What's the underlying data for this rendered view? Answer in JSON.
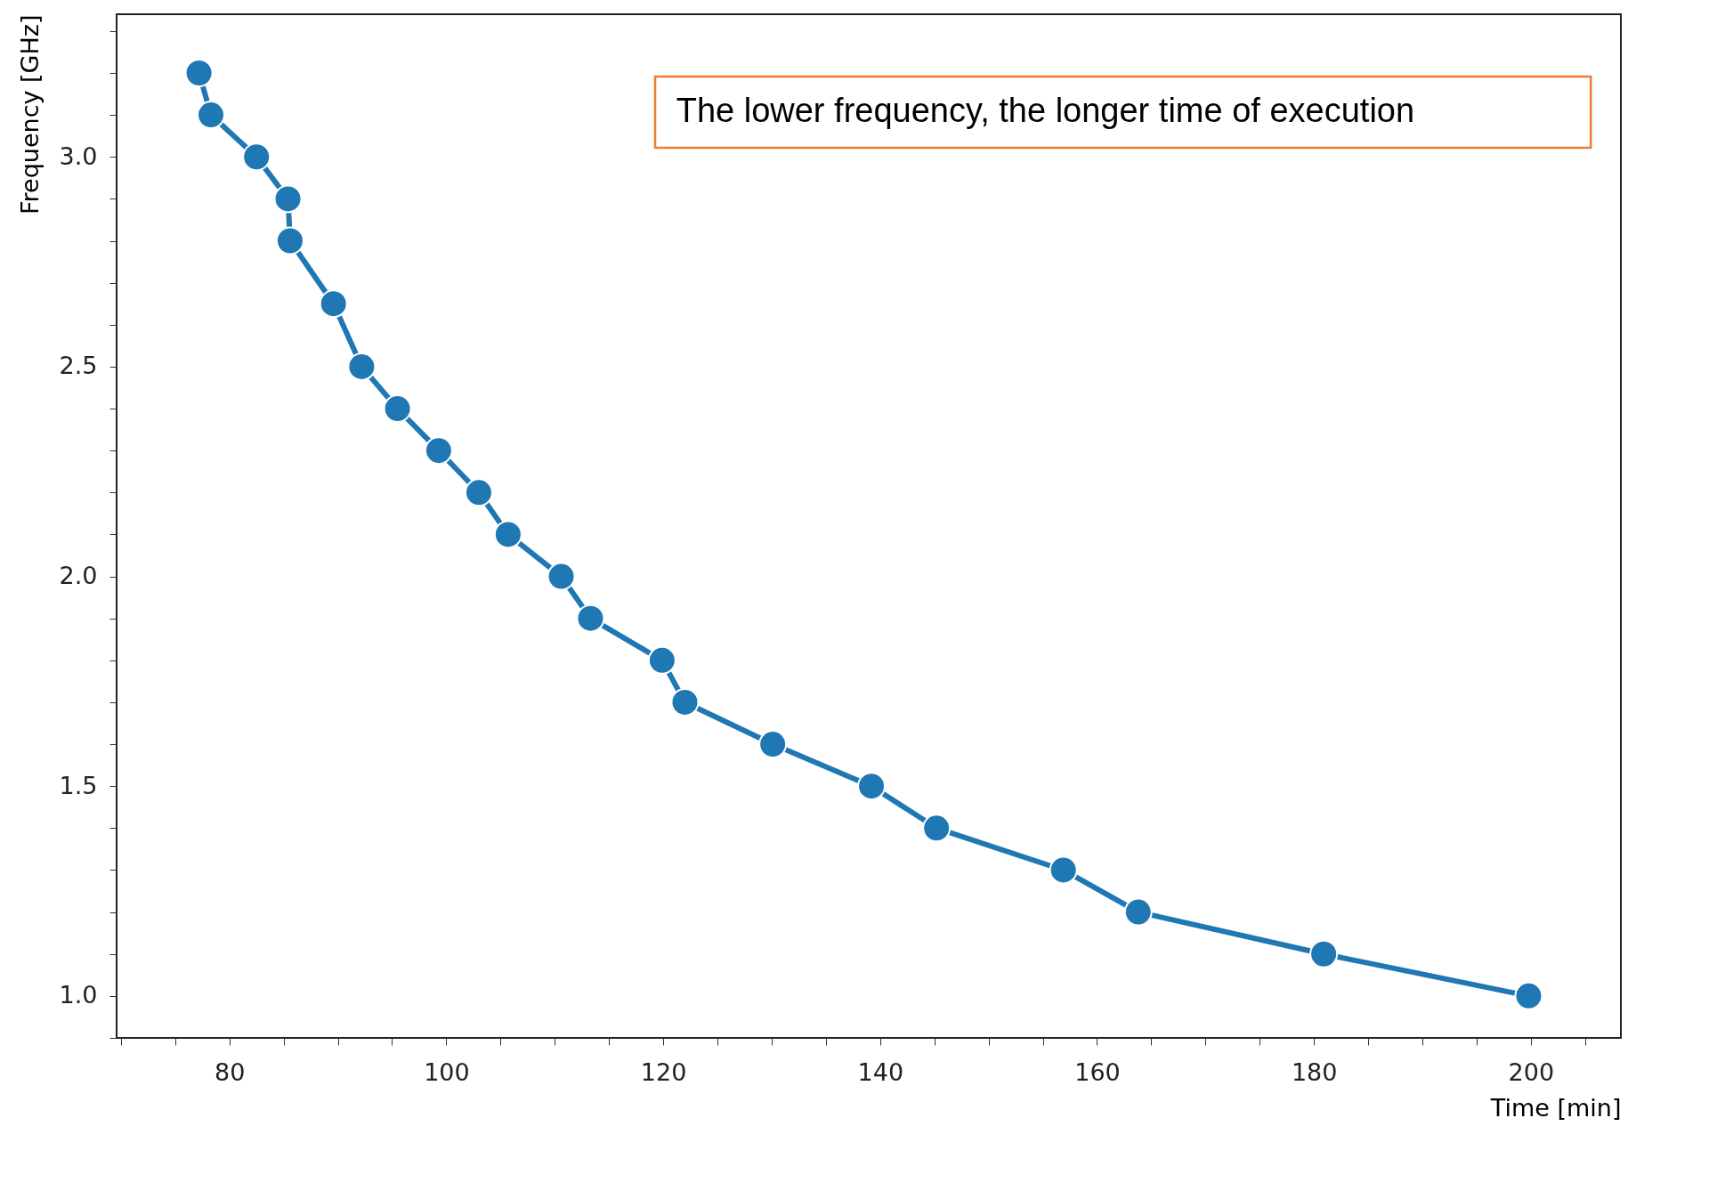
{
  "chart_data": {
    "type": "line",
    "xlabel": "Time [min]",
    "ylabel": "Frequency [GHz]",
    "x": [
      77.2,
      78.3,
      82.5,
      85.4,
      85.6,
      89.6,
      92.2,
      95.5,
      99.3,
      103.0,
      105.7,
      110.6,
      113.3,
      119.9,
      122.0,
      130.1,
      139.2,
      145.2,
      156.9,
      163.8,
      180.9,
      199.8
    ],
    "series": [
      {
        "color": "#1f77b4",
        "values": [
          3.2,
          3.1,
          3.0,
          2.9,
          2.8,
          2.65,
          2.5,
          2.4,
          2.3,
          2.2,
          2.1,
          2.0,
          1.9,
          1.8,
          1.7,
          1.6,
          1.5,
          1.4,
          1.3,
          1.2,
          1.1,
          1.0
        ]
      }
    ],
    "xlim": [
      69.6,
      208.3
    ],
    "ylim": [
      0.9,
      3.34
    ],
    "xticks": [
      {
        "value": 70,
        "label": null
      },
      {
        "value": 75,
        "label": null
      },
      80,
      {
        "value": 85,
        "label": null
      },
      {
        "value": 90,
        "label": null
      },
      {
        "value": 95,
        "label": null
      },
      100,
      {
        "value": 105,
        "label": null
      },
      {
        "value": 110,
        "label": null
      },
      {
        "value": 115,
        "label": null
      },
      120,
      {
        "value": 125,
        "label": null
      },
      {
        "value": 130,
        "label": null
      },
      {
        "value": 135,
        "label": null
      },
      140,
      {
        "value": 145,
        "label": null
      },
      {
        "value": 150,
        "label": null
      },
      {
        "value": 155,
        "label": null
      },
      160,
      {
        "value": 165,
        "label": null
      },
      {
        "value": 170,
        "label": null
      },
      {
        "value": 175,
        "label": null
      },
      180,
      {
        "value": 185,
        "label": null
      },
      {
        "value": 190,
        "label": null
      },
      {
        "value": 195,
        "label": null
      },
      200,
      {
        "value": 205,
        "label": null
      }
    ],
    "yticks": [
      {
        "value": 0.9,
        "label": null
      },
      {
        "value": 1.0,
        "label": "1.0"
      },
      {
        "value": 1.1,
        "label": null
      },
      {
        "value": 1.2,
        "label": null
      },
      {
        "value": 1.3,
        "label": null
      },
      {
        "value": 1.4,
        "label": null
      },
      1.5,
      {
        "value": 1.6,
        "label": null
      },
      {
        "value": 1.7,
        "label": null
      },
      {
        "value": 1.8,
        "label": null
      },
      {
        "value": 1.9,
        "label": null
      },
      {
        "value": 2.0,
        "label": "2.0"
      },
      {
        "value": 2.1,
        "label": null
      },
      {
        "value": 2.2,
        "label": null
      },
      {
        "value": 2.3,
        "label": null
      },
      {
        "value": 2.4,
        "label": null
      },
      2.5,
      {
        "value": 2.6,
        "label": null
      },
      {
        "value": 2.7,
        "label": null
      },
      {
        "value": 2.8,
        "label": null
      },
      {
        "value": 2.9,
        "label": null
      },
      {
        "value": 3.0,
        "label": "3.0"
      },
      {
        "value": 3.1,
        "label": null
      },
      {
        "value": 3.2,
        "label": null
      },
      {
        "value": 3.3,
        "label": null
      }
    ],
    "marker": "circle",
    "line_style": "solid",
    "grid": false,
    "annotations": [
      "The lower frequency, the longer time of execution"
    ]
  }
}
